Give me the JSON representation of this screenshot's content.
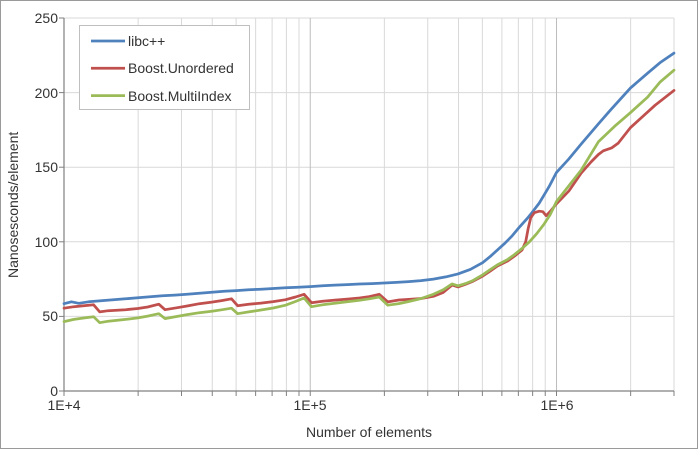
{
  "chart_data": {
    "type": "line",
    "title": "",
    "xlabel": "Number of elements",
    "ylabel": "Nanosesconds/element",
    "x_scale": "log10",
    "xlim": [
      10000,
      3000000
    ],
    "ylim": [
      0,
      250
    ],
    "y_tick_interval": 50,
    "y_tick_labels": [
      "0",
      "50",
      "100",
      "150",
      "200",
      "250"
    ],
    "x_tick_labels": [
      "1E+4",
      "1E+5",
      "1E+6"
    ],
    "x_major_ticks": [
      10000,
      100000,
      1000000
    ],
    "grid": {
      "minor_color": "#D9D9D9",
      "major_color": "#BDBDBD",
      "axis_color": "#808080",
      "plot_background": "#FFFFFF"
    },
    "legend": {
      "position": "top-left",
      "border_color": "#BFBFBF",
      "entries": [
        "libc++",
        "Boost.Unordered",
        "Boost.MultiIndex"
      ]
    },
    "series": [
      {
        "name": "libc++",
        "color": "#4F81BD",
        "points": [
          [
            10000,
            58.5
          ],
          [
            10715,
            59.8
          ],
          [
            11482,
            58.8
          ],
          [
            12589,
            59.8
          ],
          [
            14125,
            60.5
          ],
          [
            15849,
            61.2
          ],
          [
            17783,
            61.8
          ],
          [
            19953,
            62.5
          ],
          [
            22387,
            63.2
          ],
          [
            25119,
            63.8
          ],
          [
            28184,
            64.3
          ],
          [
            31623,
            64.8
          ],
          [
            35481,
            65.5
          ],
          [
            39811,
            66.2
          ],
          [
            44668,
            66.8
          ],
          [
            50119,
            67.3
          ],
          [
            56234,
            67.8
          ],
          [
            63096,
            68.2
          ],
          [
            70795,
            68.7
          ],
          [
            79433,
            69.2
          ],
          [
            89125,
            69.6
          ],
          [
            100000,
            70
          ],
          [
            112202,
            70.5
          ],
          [
            125893,
            71
          ],
          [
            141254,
            71.3
          ],
          [
            158489,
            71.7
          ],
          [
            177828,
            72
          ],
          [
            199526,
            72.4
          ],
          [
            223872,
            72.8
          ],
          [
            251189,
            73.3
          ],
          [
            281838,
            74
          ],
          [
            316228,
            75
          ],
          [
            354813,
            76.5
          ],
          [
            398107,
            78.5
          ],
          [
            446684,
            81.5
          ],
          [
            501187,
            86
          ],
          [
            537032,
            90
          ],
          [
            575440,
            94.5
          ],
          [
            616595,
            99
          ],
          [
            660693,
            104
          ],
          [
            707946,
            110
          ],
          [
            758578,
            115.5
          ],
          [
            794328,
            119.5
          ],
          [
            851138,
            126
          ],
          [
            891251,
            131.5
          ],
          [
            933254,
            137
          ],
          [
            1000000,
            146.5
          ],
          [
            1122018,
            155.5
          ],
          [
            1258925,
            165.5
          ],
          [
            1479108,
            179
          ],
          [
            1659587,
            188.5
          ],
          [
            1995262,
            203
          ],
          [
            2344229,
            213
          ],
          [
            2630268,
            220
          ],
          [
            3000000,
            226.5
          ]
        ]
      },
      {
        "name": "Boost.Unordered",
        "color": "#C0504D",
        "points": [
          [
            10000,
            55.5
          ],
          [
            10965,
            56.5
          ],
          [
            12023,
            57.2
          ],
          [
            13183,
            57.8
          ],
          [
            13964,
            53
          ],
          [
            15136,
            53.8
          ],
          [
            17783,
            54.5
          ],
          [
            19953,
            55.3
          ],
          [
            21878,
            56.3
          ],
          [
            24266,
            58.2
          ],
          [
            25704,
            54.5
          ],
          [
            28840,
            55.8
          ],
          [
            31623,
            57
          ],
          [
            35481,
            58.5
          ],
          [
            39811,
            59.6
          ],
          [
            43652,
            60.6
          ],
          [
            47863,
            61.8
          ],
          [
            50699,
            57.2
          ],
          [
            56234,
            58.1
          ],
          [
            63096,
            58.9
          ],
          [
            70795,
            59.9
          ],
          [
            79433,
            61.2
          ],
          [
            87096,
            63
          ],
          [
            94406,
            64.8
          ],
          [
            101158,
            59.2
          ],
          [
            112202,
            60.2
          ],
          [
            125893,
            60.9
          ],
          [
            141254,
            61.6
          ],
          [
            158489,
            62.3
          ],
          [
            173780,
            63.3
          ],
          [
            190546,
            64.8
          ],
          [
            206538,
            59.7
          ],
          [
            229087,
            61
          ],
          [
            251189,
            61.4
          ],
          [
            281838,
            62
          ],
          [
            316228,
            63.5
          ],
          [
            346737,
            66
          ],
          [
            376704,
            71
          ],
          [
            398107,
            69.8
          ],
          [
            426580,
            71.5
          ],
          [
            457088,
            73.5
          ],
          [
            501187,
            77
          ],
          [
            537032,
            80.3
          ],
          [
            575440,
            83.8
          ],
          [
            630957,
            87
          ],
          [
            676083,
            90.5
          ],
          [
            724436,
            94.5
          ],
          [
            749894,
            100
          ],
          [
            767361,
            109
          ],
          [
            785236,
            116
          ],
          [
            812831,
            119.5
          ],
          [
            851138,
            120.5
          ],
          [
            880488,
            120.2
          ],
          [
            907821,
            117.5
          ],
          [
            944061,
            120.5
          ],
          [
            1000000,
            125.5
          ],
          [
            1122018,
            134
          ],
          [
            1258925,
            146
          ],
          [
            1380384,
            153.5
          ],
          [
            1479108,
            158.5
          ],
          [
            1548817,
            161
          ],
          [
            1678804,
            163
          ],
          [
            1778279,
            166
          ],
          [
            1995262,
            176.5
          ],
          [
            2238721,
            184
          ],
          [
            2511886,
            191.5
          ],
          [
            3000000,
            201.5
          ]
        ]
      },
      {
        "name": "Boost.MultiIndex",
        "color": "#9BBB59",
        "points": [
          [
            10000,
            46.5
          ],
          [
            10965,
            48
          ],
          [
            12023,
            48.9
          ],
          [
            13183,
            49.8
          ],
          [
            13964,
            45.8
          ],
          [
            15136,
            46.8
          ],
          [
            17783,
            48
          ],
          [
            19953,
            49
          ],
          [
            21878,
            50.2
          ],
          [
            24266,
            51.8
          ],
          [
            25704,
            48.5
          ],
          [
            28840,
            50
          ],
          [
            31623,
            51.2
          ],
          [
            35481,
            52.5
          ],
          [
            39811,
            53.5
          ],
          [
            43652,
            54.4
          ],
          [
            47863,
            55.5
          ],
          [
            50699,
            51.8
          ],
          [
            56234,
            53
          ],
          [
            63096,
            54.3
          ],
          [
            70795,
            55.6
          ],
          [
            79433,
            57.5
          ],
          [
            87096,
            60
          ],
          [
            94406,
            62.3
          ],
          [
            101158,
            56.5
          ],
          [
            112202,
            57.8
          ],
          [
            125893,
            58.8
          ],
          [
            141254,
            59.8
          ],
          [
            158489,
            60.8
          ],
          [
            173780,
            61.8
          ],
          [
            190546,
            63
          ],
          [
            206538,
            57.5
          ],
          [
            229087,
            58.6
          ],
          [
            251189,
            60
          ],
          [
            281838,
            62
          ],
          [
            316228,
            64.8
          ],
          [
            346737,
            67.8
          ],
          [
            376704,
            71.8
          ],
          [
            398107,
            70.5
          ],
          [
            426580,
            72
          ],
          [
            457088,
            74
          ],
          [
            501187,
            77.8
          ],
          [
            537032,
            81.2
          ],
          [
            575440,
            84.5
          ],
          [
            630957,
            88
          ],
          [
            676083,
            91.5
          ],
          [
            724436,
            95.5
          ],
          [
            776247,
            100
          ],
          [
            831764,
            105.5
          ],
          [
            891251,
            112
          ],
          [
            944061,
            118.5
          ],
          [
            1000000,
            127
          ],
          [
            1122018,
            137.5
          ],
          [
            1258925,
            148
          ],
          [
            1479108,
            167
          ],
          [
            1737801,
            178
          ],
          [
            1995262,
            186.5
          ],
          [
            2344229,
            197
          ],
          [
            2630268,
            207
          ],
          [
            3000000,
            215
          ]
        ]
      }
    ]
  }
}
